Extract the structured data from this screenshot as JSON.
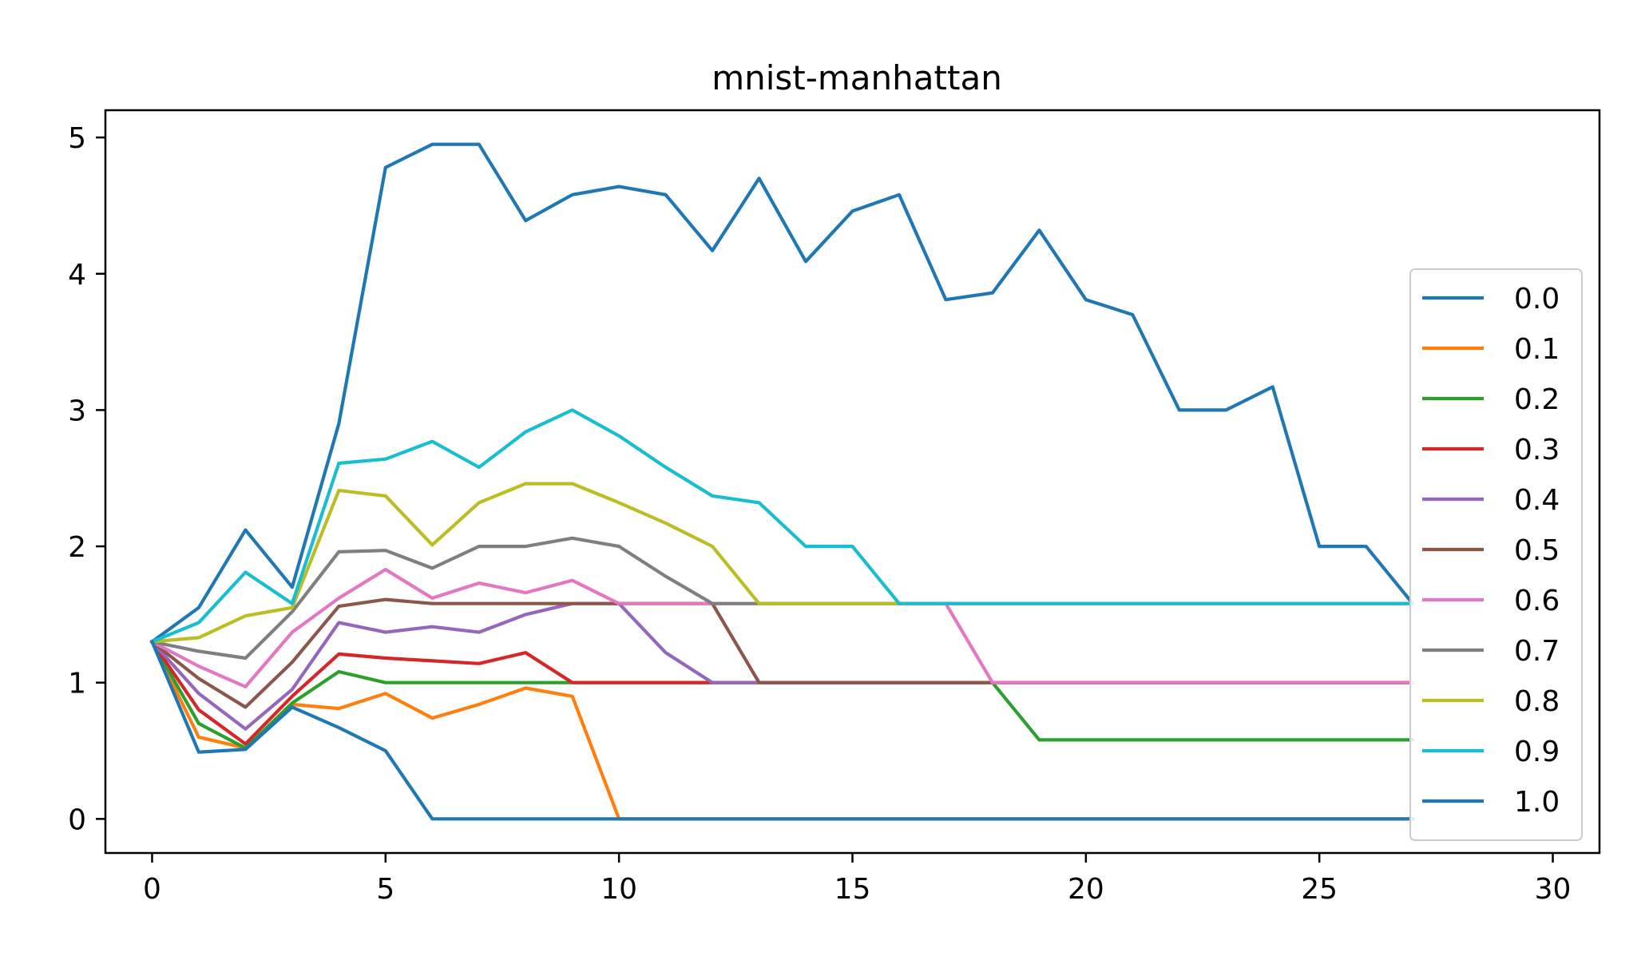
{
  "chart_data": {
    "type": "line",
    "title": "mnist-manhattan",
    "xlabel": "",
    "ylabel": "",
    "xlim": [
      -1,
      31
    ],
    "ylim": [
      -0.25,
      5.2
    ],
    "xticks": [
      0,
      5,
      10,
      15,
      20,
      25,
      30
    ],
    "yticks": [
      0,
      1,
      2,
      3,
      4,
      5
    ],
    "grid": false,
    "legend_position": "right",
    "x": [
      0,
      1,
      2,
      3,
      4,
      5,
      6,
      7,
      8,
      9,
      10,
      11,
      12,
      13,
      14,
      15,
      16,
      17,
      18,
      19,
      20,
      21,
      22,
      23,
      24,
      25,
      26,
      27
    ],
    "series": [
      {
        "name": "0.0",
        "color": "#1f77b4",
        "values": [
          1.3,
          1.55,
          2.12,
          1.7,
          2.9,
          4.78,
          4.95,
          4.95,
          4.39,
          4.58,
          4.64,
          4.58,
          4.17,
          4.7,
          4.09,
          4.46,
          4.58,
          3.81,
          3.86,
          4.32,
          3.81,
          3.7,
          3.0,
          3.0,
          3.17,
          2.0,
          2.0,
          1.58
        ]
      },
      {
        "name": "0.1",
        "color": "#ff7f0e",
        "values": [
          1.3,
          0.6,
          0.52,
          0.84,
          0.81,
          0.92,
          0.74,
          0.84,
          0.96,
          0.9,
          0.0,
          0.0,
          0.0,
          0.0,
          0.0,
          0.0,
          0.0,
          0.0,
          0.0,
          0.0,
          0.0,
          0.0,
          0.0,
          0.0,
          0.0,
          0.0,
          0.0,
          0.0
        ]
      },
      {
        "name": "0.2",
        "color": "#2ca02c",
        "values": [
          1.3,
          0.7,
          0.52,
          0.85,
          1.08,
          1.0,
          1.0,
          1.0,
          1.0,
          1.0,
          1.0,
          1.0,
          1.0,
          1.0,
          1.0,
          1.0,
          1.0,
          1.0,
          1.0,
          0.58,
          0.58,
          0.58,
          0.58,
          0.58,
          0.58,
          0.58,
          0.58,
          0.58
        ]
      },
      {
        "name": "0.3",
        "color": "#d62728",
        "values": [
          1.3,
          0.8,
          0.55,
          0.9,
          1.21,
          1.18,
          1.16,
          1.14,
          1.22,
          1.0,
          1.0,
          1.0,
          1.0,
          1.0,
          1.0,
          1.0,
          1.0,
          1.0,
          1.0,
          1.0,
          1.0,
          1.0,
          1.0,
          1.0,
          1.0,
          1.0,
          1.0,
          1.0
        ]
      },
      {
        "name": "0.4",
        "color": "#9467bd",
        "values": [
          1.3,
          0.92,
          0.66,
          0.95,
          1.44,
          1.37,
          1.41,
          1.37,
          1.5,
          1.58,
          1.58,
          1.22,
          1.0,
          1.0,
          1.0,
          1.0,
          1.0,
          1.0,
          1.0,
          1.0,
          1.0,
          1.0,
          1.0,
          1.0,
          1.0,
          1.0,
          1.0,
          1.0
        ]
      },
      {
        "name": "0.5",
        "color": "#8c564b",
        "values": [
          1.3,
          1.03,
          0.82,
          1.15,
          1.56,
          1.61,
          1.58,
          1.58,
          1.58,
          1.58,
          1.58,
          1.58,
          1.58,
          1.0,
          1.0,
          1.0,
          1.0,
          1.0,
          1.0,
          1.0,
          1.0,
          1.0,
          1.0,
          1.0,
          1.0,
          1.0,
          1.0,
          1.0
        ]
      },
      {
        "name": "0.6",
        "color": "#e377c2",
        "values": [
          1.3,
          1.12,
          0.97,
          1.37,
          1.62,
          1.83,
          1.62,
          1.73,
          1.66,
          1.75,
          1.58,
          1.58,
          1.58,
          1.58,
          1.58,
          1.58,
          1.58,
          1.58,
          1.0,
          1.0,
          1.0,
          1.0,
          1.0,
          1.0,
          1.0,
          1.0,
          1.0,
          1.0
        ]
      },
      {
        "name": "0.7",
        "color": "#7f7f7f",
        "values": [
          1.3,
          1.23,
          1.18,
          1.52,
          1.96,
          1.97,
          1.84,
          2.0,
          2.0,
          2.06,
          2.0,
          1.78,
          1.58,
          1.58,
          1.58,
          1.58,
          1.58,
          1.58,
          1.58,
          1.58,
          1.58,
          1.58,
          1.58,
          1.58,
          1.58,
          1.58,
          1.58,
          1.58
        ]
      },
      {
        "name": "0.8",
        "color": "#bcbd22",
        "values": [
          1.3,
          1.33,
          1.49,
          1.55,
          2.41,
          2.37,
          2.01,
          2.32,
          2.46,
          2.46,
          2.32,
          2.17,
          2.0,
          1.58,
          1.58,
          1.58,
          1.58,
          1.58,
          1.58,
          1.58,
          1.58,
          1.58,
          1.58,
          1.58,
          1.58,
          1.58,
          1.58,
          1.58
        ]
      },
      {
        "name": "0.9",
        "color": "#17becf",
        "values": [
          1.3,
          1.44,
          1.81,
          1.58,
          2.61,
          2.64,
          2.77,
          2.58,
          2.84,
          3.0,
          2.81,
          2.58,
          2.37,
          2.32,
          2.0,
          2.0,
          1.58,
          1.58,
          1.58,
          1.58,
          1.58,
          1.58,
          1.58,
          1.58,
          1.58,
          1.58,
          1.58,
          1.58
        ]
      },
      {
        "name": "1.0",
        "color": "#1f77b4",
        "values": [
          1.3,
          0.49,
          0.51,
          0.82,
          0.67,
          0.5,
          0.0,
          0.0,
          0.0,
          0.0,
          0.0,
          0.0,
          0.0,
          0.0,
          0.0,
          0.0,
          0.0,
          0.0,
          0.0,
          0.0,
          0.0,
          0.0,
          0.0,
          0.0,
          0.0,
          0.0,
          0.0,
          0.0
        ]
      }
    ]
  }
}
